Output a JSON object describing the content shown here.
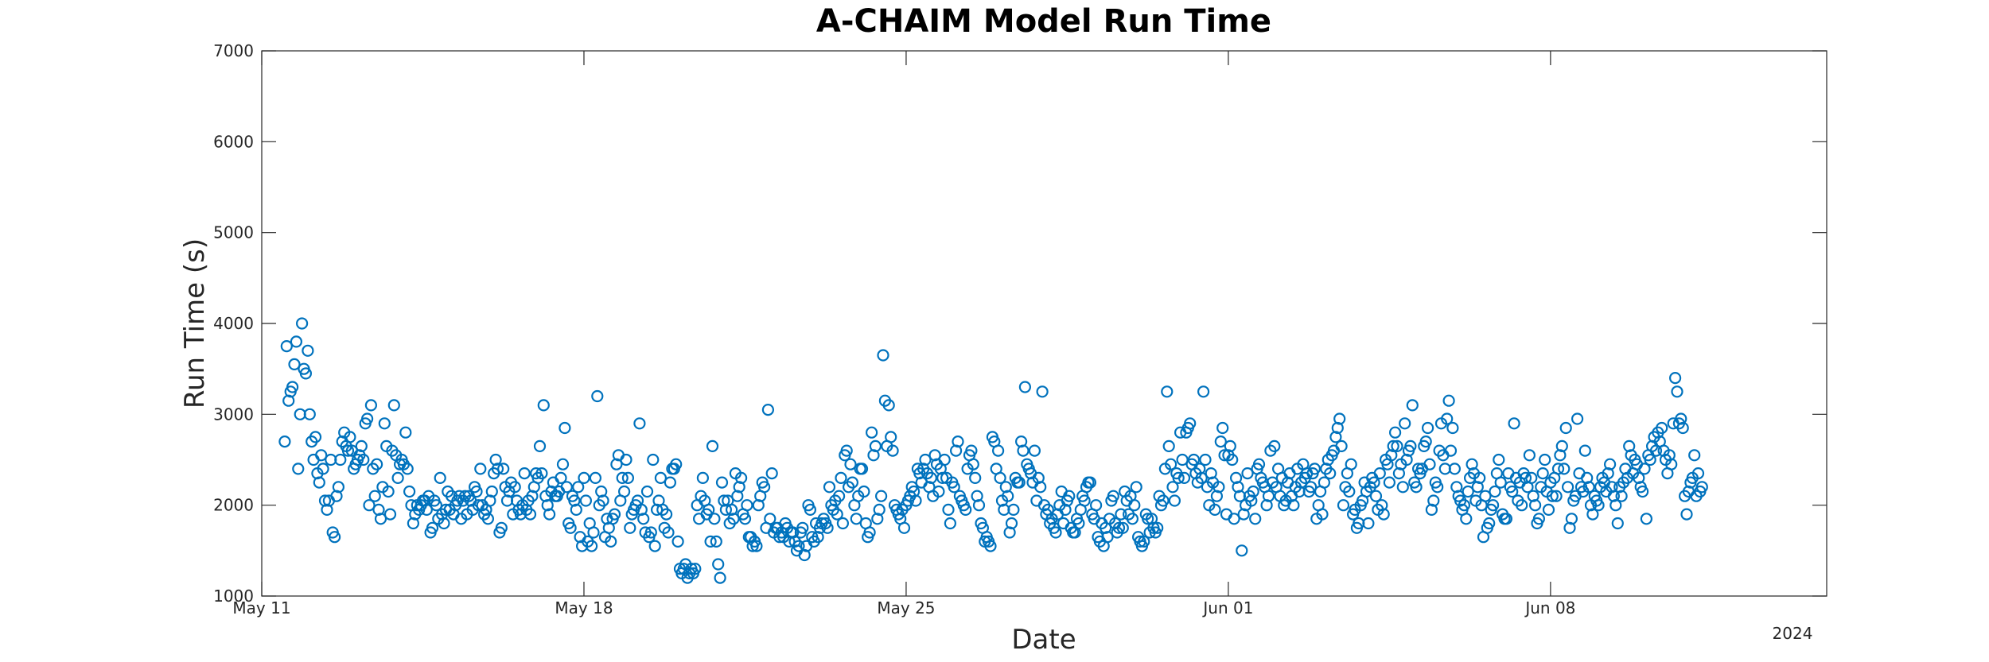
{
  "chart_data": {
    "type": "scatter",
    "title": "A-CHAIM Model Run Time",
    "xlabel": "Date",
    "ylabel": "Run Time (s)",
    "x_axis_year": "2024",
    "xlim": [
      "2024-05-11T00:00",
      "2024-06-14T00:00"
    ],
    "ylim": [
      1000,
      7000
    ],
    "yticks": [
      1000,
      2000,
      3000,
      4000,
      5000,
      6000,
      7000
    ],
    "xticks": [
      {
        "date": "2024-05-11",
        "label": "May 11"
      },
      {
        "date": "2024-05-18",
        "label": "May 18"
      },
      {
        "date": "2024-05-25",
        "label": "May 25"
      },
      {
        "date": "2024-06-01",
        "label": "Jun 01"
      },
      {
        "date": "2024-06-08",
        "label": "Jun 08"
      }
    ],
    "grid": false,
    "marker": "open-circle",
    "color": "#0072BD",
    "start_datetime": "2024-05-11T00:00",
    "sample_interval_hours": 1,
    "y": [
      2700,
      3750,
      3150,
      3250,
      3300,
      3550,
      3800,
      2400,
      3000,
      4000,
      3500,
      3450,
      3700,
      3000,
      2700,
      2500,
      2750,
      2350,
      2250,
      2550,
      2400,
      2050,
      1950,
      2050,
      2500,
      1700,
      1650,
      2100,
      2200,
      2500,
      2700,
      2800,
      2650,
      2600,
      2750,
      2600,
      2400,
      2450,
      2500,
      2550,
      2650,
      2500,
      2900,
      2950,
      2000,
      3100,
      2400,
      2100,
      2450,
      1950,
      1850,
      2200,
      2900,
      2650,
      2150,
      1900,
      2600,
      3100,
      2550,
      2300,
      2450,
      2500,
      2450,
      2800,
      2400,
      2150,
      2000,
      1800,
      1900,
      2000,
      1950,
      2000,
      2050,
      2050,
      1950,
      2100,
      1700,
      1750,
      2050,
      2000,
      1850,
      2300,
      1900,
      1800,
      1950,
      2150,
      1950,
      2100,
      1900,
      2000,
      2050,
      2100,
      1850,
      2050,
      2100,
      1900,
      2100,
      2050,
      1950,
      2200,
      2150,
      2000,
      2400,
      2000,
      1900,
      1950,
      1850,
      2050,
      2150,
      2350,
      2500,
      2400,
      1700,
      1750,
      2400,
      2200,
      2050,
      2150,
      2250,
      1900,
      2200,
      2050,
      1950,
      1900,
      2000,
      2350,
      1950,
      2050,
      1900,
      2100,
      2200,
      2350,
      2300,
      2650,
      2350,
      3100,
      2100,
      2000,
      1900,
      2150,
      2250,
      2100,
      2100,
      2150,
      2300,
      2450,
      2850,
      2200,
      1800,
      1750,
      2100,
      2050,
      1950,
      2200,
      1650,
      1550,
      2300,
      2050,
      1600,
      1800,
      1550,
      1700,
      2300,
      3200,
      2000,
      2150,
      2050,
      1650,
      1850,
      1750,
      1600,
      1850,
      1900,
      2450,
      2550,
      2050,
      2300,
      2150,
      2500,
      2300,
      1750,
      1900,
      1950,
      2000,
      2050,
      2900,
      1950,
      1850,
      1700,
      2150,
      1650,
      1700,
      2500,
      1550,
      1950,
      2050,
      2300,
      1950,
      1750,
      1900,
      1700,
      2250,
      2400,
      2400,
      2450,
      1600,
      1300,
      1250,
      1300,
      1350,
      1200,
      1250,
      1300,
      1250,
      1300,
      2000,
      1850,
      2100,
      2300,
      2050,
      1900,
      1950,
      1600,
      2650,
      1850,
      1600,
      1350,
      1200,
      2250,
      2050,
      1950,
      2050,
      1800,
      1950,
      1850,
      2350,
      2100,
      2200,
      2300,
      1900,
      1850,
      2000,
      1650,
      1650,
      1550,
      1600,
      1550,
      2000,
      2100,
      2250,
      2200,
      1750,
      3050,
      1850,
      2350,
      1700,
      1750,
      1750,
      1650,
      1700,
      1650,
      1800,
      1750,
      1600,
      1700,
      1700,
      1600,
      1500,
      1550,
      1700,
      1750,
      1450,
      1550,
      2000,
      1950,
      1650,
      1600,
      1800,
      1650,
      1750,
      1800,
      1850,
      1800,
      1750,
      2200,
      2000,
      1950,
      2050,
      1900,
      2100,
      2300,
      1800,
      2550,
      2600,
      2200,
      2450,
      2250,
      2000,
      1850,
      2100,
      2400,
      2400,
      2150,
      1800,
      1650,
      1700,
      2800,
      2550,
      2650,
      1850,
      1950,
      2100,
      3650,
      3150,
      2650,
      3100,
      2750,
      2600,
      2000,
      1950,
      1900,
      1850,
      1950,
      1750,
      2000,
      2050,
      2100,
      2200,
      2150,
      2050,
      2400,
      2350,
      2250,
      2400,
      2500,
      2350,
      2200,
      2300,
      2100,
      2550,
      2450,
      2150,
      2400,
      2300,
      2500,
      2300,
      1950,
      1800,
      2250,
      2200,
      2600,
      2700,
      2100,
      2050,
      2000,
      1950,
      2400,
      2550,
      2600,
      2450,
      2300,
      2100,
      2000,
      1800,
      1750,
      1600,
      1650,
      1600,
      1550,
      2750,
      2700,
      2400,
      2600,
      2300,
      2050,
      1950,
      2200,
      2100,
      1700,
      1800,
      1950,
      2300,
      2250,
      2250,
      2700,
      2600,
      3300,
      2450,
      2400,
      2350,
      2250,
      2600,
      2050,
      2300,
      2200,
      3250,
      2000,
      1900,
      1950,
      1800,
      1850,
      1750,
      1700,
      1900,
      2000,
      2150,
      1800,
      1950,
      2050,
      2100,
      1750,
      1700,
      1700,
      1850,
      1800,
      1950,
      2100,
      2050,
      2200,
      2250,
      2250,
      1900,
      1850,
      2000,
      1650,
      1600,
      1800,
      1550,
      1750,
      1650,
      1850,
      2050,
      2100,
      1800,
      1700,
      1750,
      1900,
      1750,
      2150,
      2050,
      1900,
      2100,
      1850,
      2000,
      2200,
      1650,
      1600,
      1550,
      1600,
      1900,
      1850,
      1700,
      1850,
      1750,
      1700,
      1750,
      2100,
      2000,
      2050,
      2400,
      3250,
      2650,
      2450,
      2200,
      2050,
      2350,
      2300,
      2800,
      2500,
      2300,
      2800,
      2850,
      2900,
      2450,
      2500,
      2350,
      2250,
      2400,
      2300,
      3250,
      2500,
      2200,
      2000,
      2350,
      2250,
      1950,
      2100,
      2200,
      2700,
      2850,
      2550,
      1900,
      2550,
      2650,
      2500,
      1850,
      2300,
      2200,
      2100,
      1500,
      1900,
      2000,
      2350,
      2100,
      2050,
      2150,
      1850,
      2400,
      2450,
      2300,
      2250,
      2200,
      2000,
      2100,
      2600,
      2250,
      2650,
      2200,
      2400,
      2100,
      2300,
      2000,
      2050,
      2250,
      2350,
      2100,
      2000,
      2200,
      2400,
      2150,
      2250,
      2450,
      2300,
      2350,
      2150,
      2200,
      2350,
      2400,
      1850,
      2000,
      2150,
      1900,
      2250,
      2400,
      2500,
      2350,
      2550,
      2600,
      2750,
      2850,
      2950,
      2650,
      2000,
      2200,
      2350,
      2150,
      2450,
      1900,
      1950,
      1750,
      1800,
      2000,
      2050,
      2250,
      2150,
      1800,
      2200,
      2300,
      2250,
      2100,
      1950,
      2350,
      2000,
      1900,
      2500,
      2450,
      2250,
      2550,
      2650,
      2800,
      2650,
      2350,
      2450,
      2200,
      2900,
      2500,
      2600,
      2650,
      3100,
      2250,
      2200,
      2400,
      2350,
      2400,
      2650,
      2700,
      2850,
      2450,
      1950,
      2050,
      2250,
      2200,
      2600,
      2900,
      2550,
      2400,
      2950,
      3150,
      2600,
      2850,
      2400,
      2200,
      2100,
      2050,
      1950,
      2000,
      1850,
      2150,
      2300,
      2450,
      2350,
      2050,
      2200,
      2300,
      2000,
      1650,
      2100,
      1750,
      1800,
      1950,
      2000,
      2150,
      2350,
      2500,
      2250,
      1900,
      1850,
      1850,
      2350,
      2200,
      2150,
      2900,
      2300,
      2050,
      2250,
      2000,
      2350,
      2300,
      2200,
      2550,
      2300,
      2100,
      2000,
      1800,
      1850,
      2200,
      2350,
      2500,
      2150,
      1950,
      2250,
      2100,
      2300,
      2100,
      2400,
      2550,
      2650,
      2400,
      2850,
      2200,
      1750,
      1850,
      2050,
      2100,
      2950,
      2350,
      2200,
      2150,
      2600,
      2300,
      2200,
      2000,
      1900,
      2100,
      2050,
      2000,
      2200,
      2300,
      2250,
      2150,
      2350,
      2450,
      2200,
      2100,
      2000,
      1800,
      2200,
      2100,
      2250,
      2400,
      2300,
      2650,
      2550,
      2350,
      2500,
      2450,
      2300,
      2200,
      2150,
      2400,
      1850,
      2550,
      2500,
      2650,
      2750,
      2600,
      2800,
      2700,
      2850,
      2600,
      2500,
      2350,
      2550,
      2450,
      2900,
      3400,
      3250,
      2900,
      2950,
      2850,
      2100,
      1900,
      2150,
      2250,
      2300,
      2550,
      2100,
      2350,
      2150,
      2200
    ]
  }
}
